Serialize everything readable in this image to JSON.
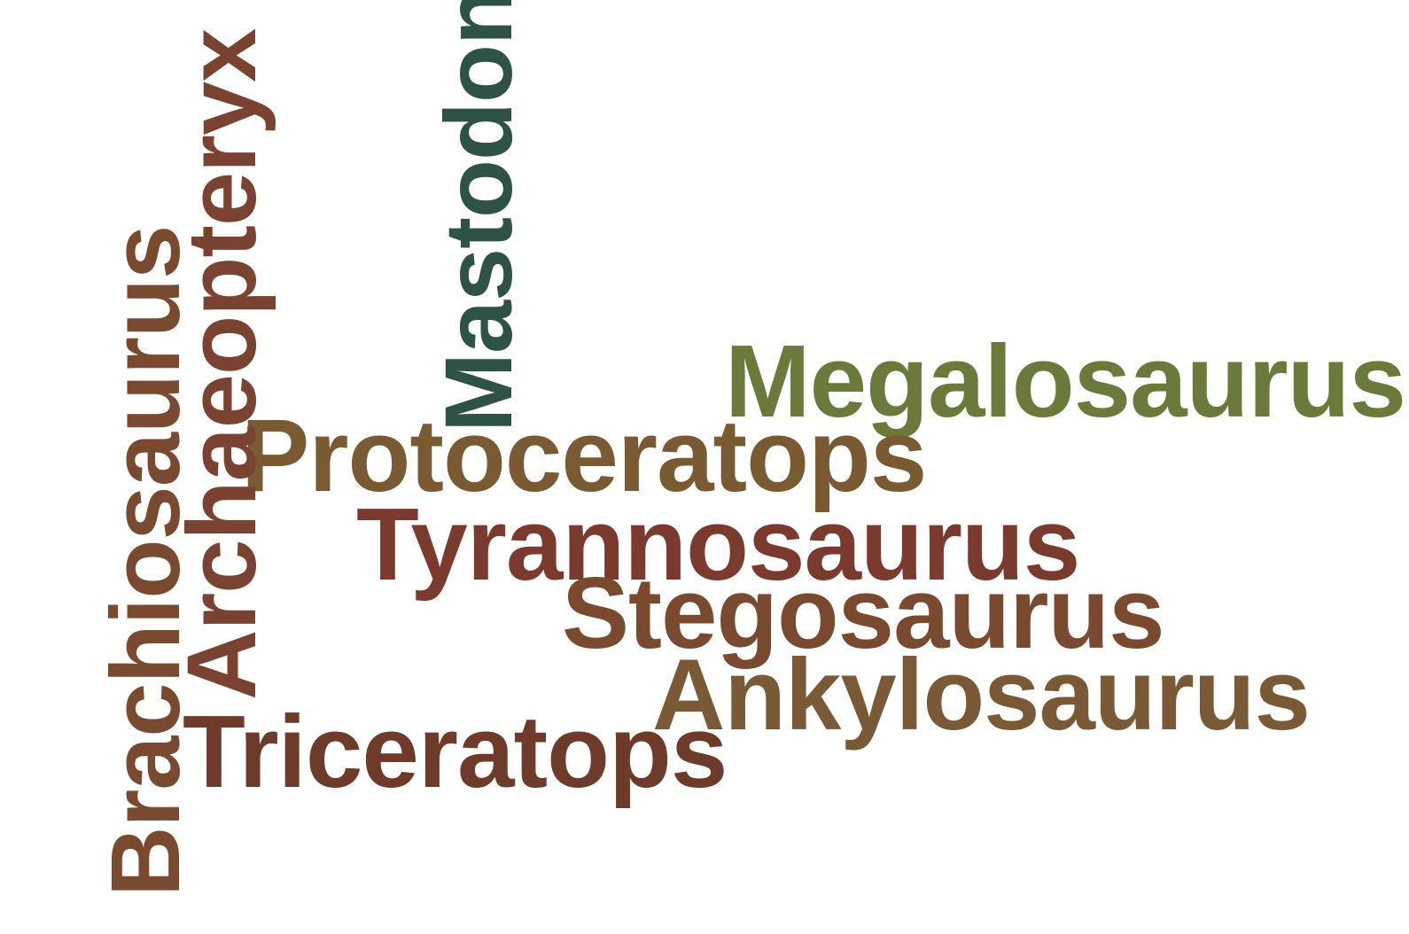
{
  "word_cloud": {
    "words": [
      {
        "id": "megalosaurus",
        "text": "Megalosaurus",
        "color": "#6b7a3a",
        "orientation": "horizontal"
      },
      {
        "id": "protoceratops",
        "text": "Protoceratops",
        "color": "#7a5a32",
        "orientation": "horizontal"
      },
      {
        "id": "tyrannosaurus",
        "text": "Tyrannosaurus",
        "color": "#7a3a2e",
        "orientation": "horizontal"
      },
      {
        "id": "stegosaurus",
        "text": "Stegosaurus",
        "color": "#7a4a30",
        "orientation": "horizontal"
      },
      {
        "id": "ankylosaurus",
        "text": "Ankylosaurus",
        "color": "#7a5a36",
        "orientation": "horizontal"
      },
      {
        "id": "triceratops",
        "text": "Triceratops",
        "color": "#6e3a2a",
        "orientation": "horizontal"
      },
      {
        "id": "mastodon",
        "text": "Mastodon",
        "color": "#2f5247",
        "orientation": "vertical"
      },
      {
        "id": "archaeopteryx",
        "text": "Archaeopteryx",
        "color": "#7a4230",
        "orientation": "vertical"
      },
      {
        "id": "brachiosaurus",
        "text": "Brachiosaurus",
        "color": "#7a4a30",
        "orientation": "vertical"
      }
    ]
  }
}
